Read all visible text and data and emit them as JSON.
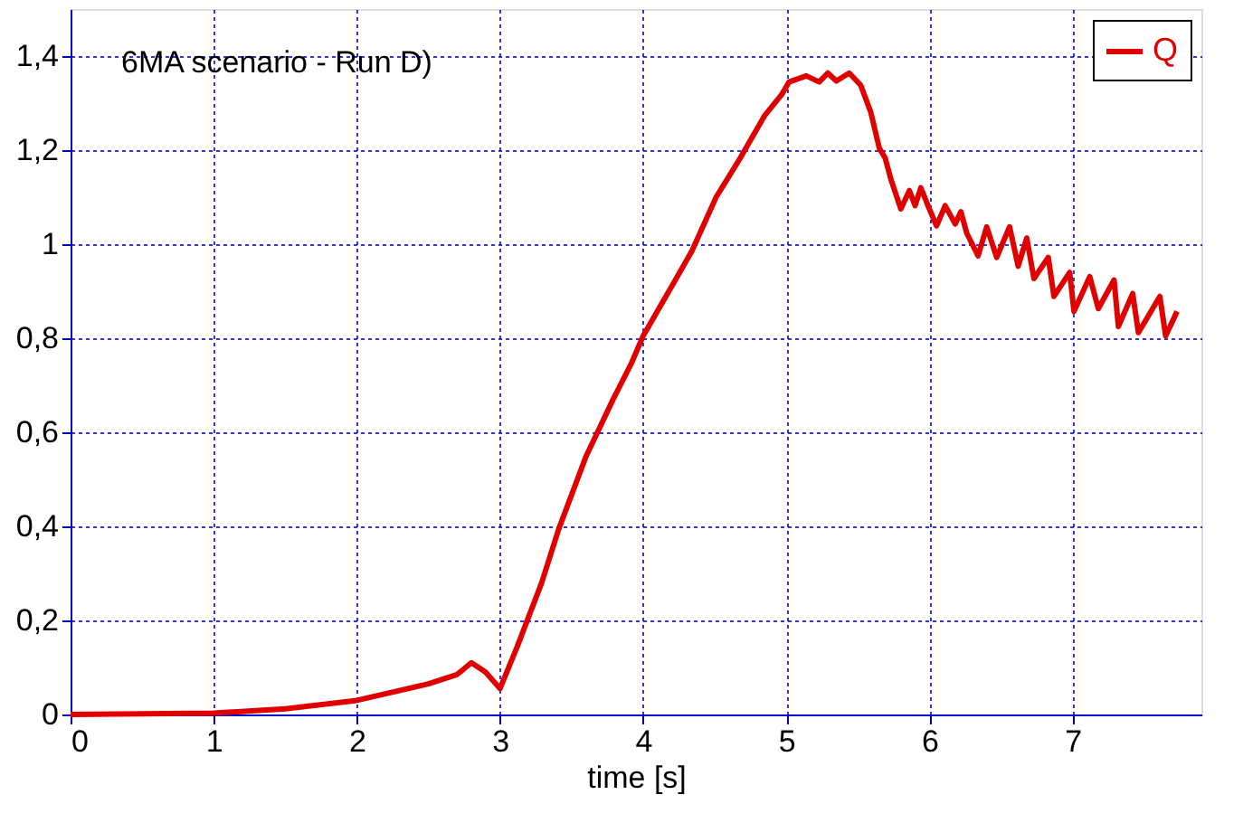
{
  "chart_data": {
    "type": "line",
    "xlabel": "time [s]",
    "annotations": [
      "6MA scenario - Run D)"
    ],
    "legend": "top right",
    "grid": true,
    "marker": "none",
    "line_style": "solid",
    "xlim": [
      0,
      7.9
    ],
    "ylim": [
      0,
      1.5
    ],
    "xticks": [
      0,
      1,
      2,
      3,
      4,
      5,
      6,
      7
    ],
    "yticks": [
      0,
      {
        "value": 0.2,
        "label": "0,2"
      },
      {
        "value": 0.4,
        "label": "0,4"
      },
      {
        "value": 0.6,
        "label": "0,6"
      },
      {
        "value": 0.8,
        "label": "0,8"
      },
      1,
      {
        "value": 1.2,
        "label": "1,2"
      },
      {
        "value": 1.4,
        "label": "1,4"
      }
    ],
    "series": [
      {
        "name": "Q",
        "color": "#e00000",
        "x": [
          0,
          1,
          1.5,
          2,
          2.5,
          2.7,
          2.8,
          2.9,
          3.0,
          3.12,
          3.29,
          3.41,
          3.6,
          3.79,
          3.92,
          4.0,
          4.22,
          4.34,
          4.51,
          4.68,
          4.85,
          4.97,
          5.02,
          5.14,
          5.23,
          5.29,
          5.35,
          5.44,
          5.52,
          5.59,
          5.65,
          5.69,
          5.73,
          5.8,
          5.86,
          5.9,
          5.94,
          5.99,
          6.05,
          6.11,
          6.18,
          6.22,
          6.26,
          6.34,
          6.4,
          6.47,
          6.56,
          6.62,
          6.68,
          6.73,
          6.83,
          6.87,
          6.98,
          7.01,
          7.12,
          7.18,
          7.29,
          7.32,
          7.42,
          7.46,
          7.61,
          7.65,
          7.73
        ],
        "values": [
          0,
          0.003,
          0.012,
          0.03,
          0.065,
          0.085,
          0.11,
          0.09,
          0.055,
          0.144,
          0.279,
          0.394,
          0.548,
          0.67,
          0.748,
          0.805,
          0.921,
          0.985,
          1.1,
          1.184,
          1.274,
          1.319,
          1.345,
          1.358,
          1.345,
          1.364,
          1.347,
          1.364,
          1.338,
          1.281,
          1.204,
          1.184,
          1.139,
          1.075,
          1.114,
          1.082,
          1.12,
          1.082,
          1.039,
          1.082,
          1.043,
          1.069,
          1.024,
          0.975,
          1.037,
          0.972,
          1.037,
          0.953,
          1.013,
          0.927,
          0.972,
          0.889,
          0.94,
          0.857,
          0.931,
          0.863,
          0.924,
          0.825,
          0.895,
          0.812,
          0.889,
          0.805,
          0.857
        ]
      }
    ]
  }
}
